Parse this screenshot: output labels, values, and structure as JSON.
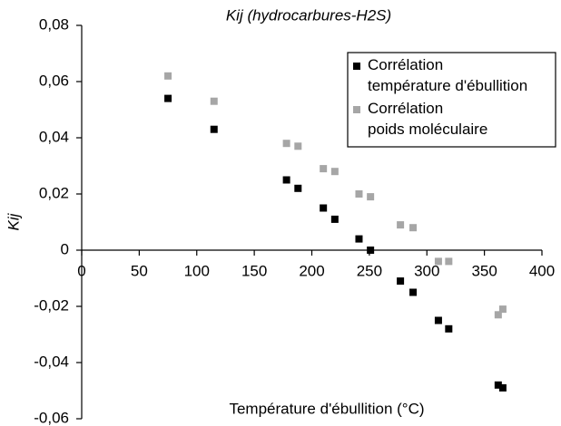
{
  "chart_data": {
    "type": "scatter",
    "title": "Kij (hydrocarbures-H2S)",
    "xlabel": "Température d'ébullition (°C)",
    "ylabel": "Kij",
    "x": [
      75,
      115,
      178,
      188,
      210,
      220,
      241,
      251,
      277,
      288,
      310,
      319,
      362,
      366
    ],
    "series": [
      {
        "name": "Corrélation\ntempérature d'ébullition",
        "color": "#000000",
        "values": [
          0.054,
          0.043,
          0.025,
          0.022,
          0.015,
          0.011,
          0.004,
          0.0,
          -0.011,
          -0.015,
          -0.025,
          -0.028,
          -0.048,
          -0.049
        ]
      },
      {
        "name": "Corrélation\npoids moléculaire",
        "color": "#a6a6a6",
        "values": [
          0.062,
          0.053,
          0.038,
          0.037,
          0.029,
          0.028,
          0.02,
          0.019,
          0.009,
          0.008,
          -0.004,
          -0.004,
          -0.023,
          -0.021
        ]
      }
    ],
    "xlim": [
      0,
      400
    ],
    "xticks": [
      0,
      50,
      100,
      150,
      200,
      250,
      300,
      350,
      400
    ],
    "ylim": [
      -0.06,
      0.08
    ],
    "yticks": [
      {
        "value": -0.06,
        "label": "-0,06"
      },
      {
        "value": -0.04,
        "label": "-0,04"
      },
      {
        "value": -0.02,
        "label": "-0,02"
      },
      0,
      {
        "value": 0.02,
        "label": "0,02"
      },
      {
        "value": 0.04,
        "label": "0,04"
      },
      {
        "value": 0.06,
        "label": "0,06"
      },
      {
        "value": 0.08,
        "label": "0,08"
      }
    ],
    "legend": "upper right"
  }
}
